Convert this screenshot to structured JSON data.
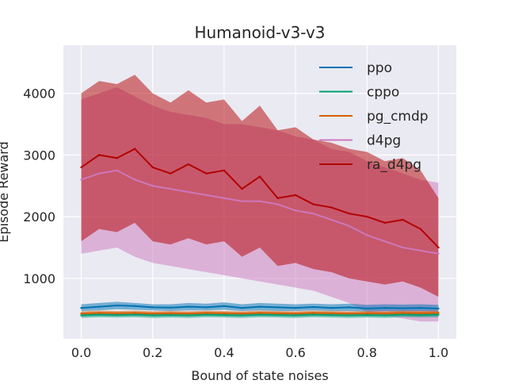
{
  "chart_data": {
    "type": "line",
    "title": "Humanoid-v3-v3",
    "xlabel": "Bound of state noises",
    "ylabel": "Episode Reward",
    "xlim": [
      -0.05,
      1.05
    ],
    "ylim": [
      20,
      4780
    ],
    "x_ticks": [
      "0.0",
      "0.2",
      "0.4",
      "0.6",
      "0.8",
      "1.0"
    ],
    "y_ticks": [
      "1000",
      "2000",
      "3000",
      "4000"
    ],
    "grid": true,
    "legend_position": "top-right",
    "x": [
      0.0,
      0.05,
      0.1,
      0.15,
      0.2,
      0.25,
      0.3,
      0.35,
      0.4,
      0.45,
      0.5,
      0.55,
      0.6,
      0.65,
      0.7,
      0.75,
      0.8,
      0.85,
      0.9,
      0.95,
      1.0
    ],
    "series": [
      {
        "name": "ppo",
        "color": "#0072b2",
        "values": [
          520,
          540,
          560,
          550,
          530,
          525,
          540,
          530,
          550,
          520,
          540,
          530,
          520,
          535,
          520,
          530,
          510,
          520,
          515,
          520,
          510
        ],
        "lower": [
          470,
          480,
          500,
          490,
          480,
          470,
          480,
          480,
          490,
          470,
          480,
          470,
          470,
          480,
          470,
          470,
          460,
          470,
          465,
          470,
          460
        ],
        "upper": [
          580,
          600,
          620,
          600,
          580,
          580,
          600,
          590,
          610,
          580,
          600,
          590,
          580,
          590,
          580,
          590,
          570,
          580,
          575,
          580,
          570
        ]
      },
      {
        "name": "cppo",
        "color": "#009e73",
        "values": [
          400,
          410,
          405,
          410,
          400,
          405,
          400,
          410,
          405,
          400,
          410,
          405,
          400,
          410,
          405,
          400,
          405,
          400,
          410,
          405,
          410
        ],
        "lower": [
          360,
          370,
          365,
          370,
          360,
          365,
          360,
          370,
          365,
          360,
          370,
          365,
          360,
          370,
          365,
          360,
          365,
          360,
          370,
          365,
          370
        ],
        "upper": [
          440,
          450,
          445,
          450,
          440,
          445,
          440,
          450,
          445,
          440,
          450,
          445,
          440,
          450,
          445,
          440,
          445,
          440,
          450,
          445,
          450
        ]
      },
      {
        "name": "pg_cmdp",
        "color": "#d55e00",
        "values": [
          430,
          440,
          435,
          440,
          430,
          435,
          430,
          440,
          435,
          430,
          440,
          435,
          430,
          440,
          435,
          430,
          435,
          430,
          440,
          435,
          440
        ],
        "lower": [
          395,
          405,
          400,
          405,
          395,
          400,
          395,
          405,
          400,
          395,
          405,
          400,
          395,
          405,
          400,
          395,
          400,
          395,
          405,
          400,
          405
        ],
        "upper": [
          465,
          475,
          470,
          475,
          465,
          470,
          465,
          475,
          470,
          465,
          475,
          470,
          465,
          475,
          470,
          465,
          470,
          465,
          475,
          470,
          475
        ]
      },
      {
        "name": "d4pg",
        "color": "#cc78bc",
        "values": [
          2600,
          2700,
          2750,
          2600,
          2500,
          2450,
          2400,
          2350,
          2300,
          2250,
          2250,
          2200,
          2100,
          2050,
          1950,
          1850,
          1700,
          1600,
          1500,
          1450,
          1400
        ],
        "lower": [
          1400,
          1450,
          1500,
          1350,
          1250,
          1200,
          1150,
          1100,
          1050,
          1000,
          950,
          900,
          850,
          800,
          700,
          600,
          450,
          400,
          350,
          300,
          300
        ],
        "upper": [
          3900,
          4000,
          4100,
          3950,
          3800,
          3700,
          3650,
          3600,
          3500,
          3500,
          3450,
          3400,
          3300,
          3250,
          3100,
          3050,
          2900,
          2800,
          2700,
          2600,
          2550
        ]
      },
      {
        "name": "ra_d4pg",
        "color": "#b30000",
        "values": [
          2800,
          3000,
          2950,
          3100,
          2800,
          2700,
          2850,
          2700,
          2750,
          2450,
          2650,
          2300,
          2350,
          2200,
          2150,
          2050,
          2000,
          1900,
          1950,
          1800,
          1500
        ],
        "lower": [
          1600,
          1800,
          1750,
          1900,
          1600,
          1550,
          1650,
          1550,
          1600,
          1350,
          1500,
          1200,
          1250,
          1150,
          1100,
          1000,
          950,
          900,
          950,
          850,
          700
        ],
        "upper": [
          4000,
          4200,
          4150,
          4300,
          4000,
          3850,
          4050,
          3850,
          3900,
          3550,
          3800,
          3400,
          3450,
          3250,
          3200,
          3100,
          3050,
          2900,
          2950,
          2750,
          2300
        ]
      }
    ]
  }
}
